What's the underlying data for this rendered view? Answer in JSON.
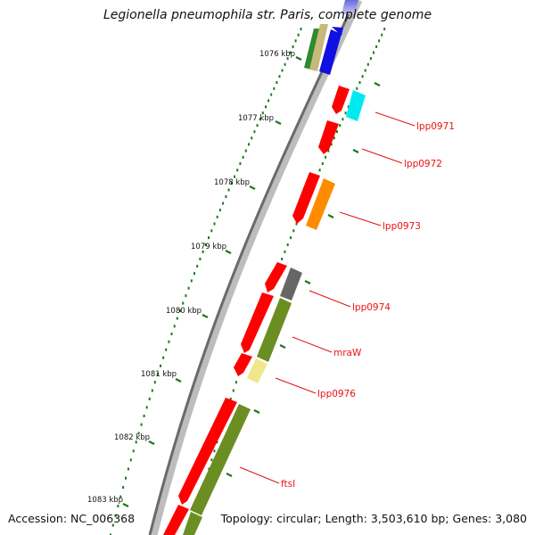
{
  "title": "Legionella pneumophila str. Paris, complete genome",
  "footer": {
    "accession": "Accession: NC_006368",
    "topology": "Topology: circular; Length: 3,503,610 bp; Genes: 3,080"
  },
  "ruler": {
    "labels": [
      "1076 kbp",
      "1077 kbp",
      "1078 kbp",
      "1079 kbp",
      "1080 kbp",
      "1081 kbp",
      "1082 kbp",
      "1083 kbp"
    ]
  },
  "gene_labels": [
    "lpp0971",
    "lpp0972",
    "lpp0973",
    "lpp0974",
    "mraW",
    "lpp0976",
    "ftsI"
  ],
  "colors": {
    "backbone": "#8a8a8a",
    "cds": "#ff0000",
    "olive": "#6b8e23",
    "label": "#e11111",
    "tick": "#1a7a1a"
  }
}
